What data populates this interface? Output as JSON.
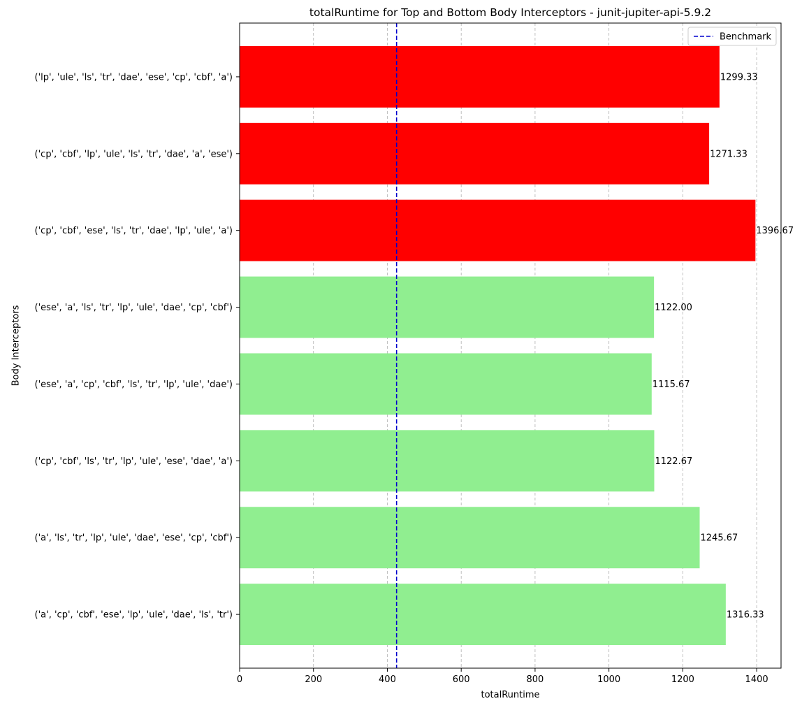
{
  "chart_data": {
    "type": "bar",
    "orientation": "horizontal",
    "title": "totalRuntime for Top and Bottom Body Interceptors - junit-jupiter-api-5.9.2",
    "xlabel": "totalRuntime",
    "ylabel": "Body Interceptors",
    "xlim": [
      0,
      1466
    ],
    "x_ticks": [
      0,
      200,
      400,
      600,
      800,
      1000,
      1200,
      1400
    ],
    "x_grid": true,
    "categories": [
      "('lp', 'ule', 'ls', 'tr', 'dae', 'ese', 'cp', 'cbf', 'a')",
      "('cp', 'cbf', 'lp', 'ule', 'ls', 'tr', 'dae', 'a', 'ese')",
      "('cp', 'cbf', 'ese', 'ls', 'tr', 'dae', 'lp', 'ule', 'a')",
      "('ese', 'a', 'ls', 'tr', 'lp', 'ule', 'dae', 'cp', 'cbf')",
      "('ese', 'a', 'cp', 'cbf', 'ls', 'tr', 'lp', 'ule', 'dae')",
      "('cp', 'cbf', 'ls', 'tr', 'lp', 'ule', 'ese', 'dae', 'a')",
      "('a', 'ls', 'tr', 'lp', 'ule', 'dae', 'ese', 'cp', 'cbf')",
      "('a', 'cp', 'cbf', 'ese', 'lp', 'ule', 'dae', 'ls', 'tr')"
    ],
    "values": [
      1299.33,
      1271.33,
      1396.67,
      1122.0,
      1115.67,
      1122.67,
      1245.67,
      1316.33
    ],
    "value_labels": [
      "1299.33",
      "1271.33",
      "1396.67",
      "1122.00",
      "1115.67",
      "1122.67",
      "1245.67",
      "1316.33"
    ],
    "bar_colors": [
      "#ff0000",
      "#ff0000",
      "#ff0000",
      "#90ee90",
      "#90ee90",
      "#90ee90",
      "#90ee90",
      "#90ee90"
    ],
    "benchmark": {
      "value": 425,
      "label": "Benchmark",
      "color": "#0000cd",
      "style": "dashed"
    },
    "legend_position": "top-right"
  }
}
